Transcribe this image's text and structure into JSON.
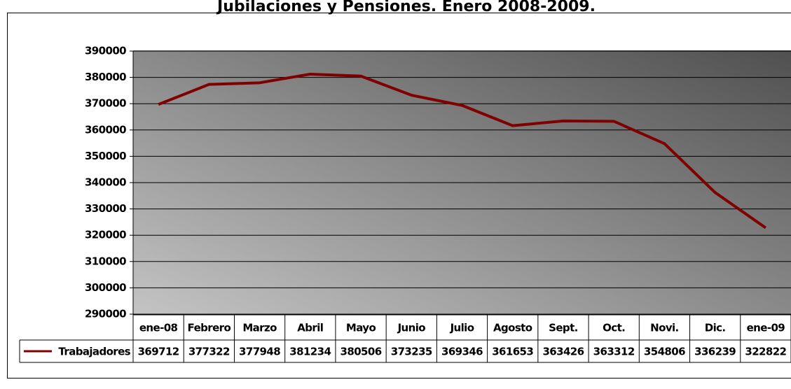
{
  "chart_data": {
    "type": "line",
    "title": "Jubilaciones y Pensiones. Enero 2008-2009.",
    "categories": [
      "ene-08",
      "Febrero",
      "Marzo",
      "Abril",
      "Mayo",
      "Junio",
      "Julio",
      "Agosto",
      "Sept.",
      "Oct.",
      "Novi.",
      "Dic.",
      "ene-09"
    ],
    "series": [
      {
        "name": "Trabajadores",
        "color": "#800000",
        "values": [
          369712,
          377322,
          377948,
          381234,
          380506,
          373235,
          369346,
          361653,
          363426,
          363312,
          354806,
          336239,
          322822
        ]
      }
    ],
    "ylim": [
      290000,
      390000
    ],
    "yticks": [
      290000,
      300000,
      310000,
      320000,
      330000,
      340000,
      350000,
      360000,
      370000,
      380000,
      390000
    ],
    "grid": true
  }
}
